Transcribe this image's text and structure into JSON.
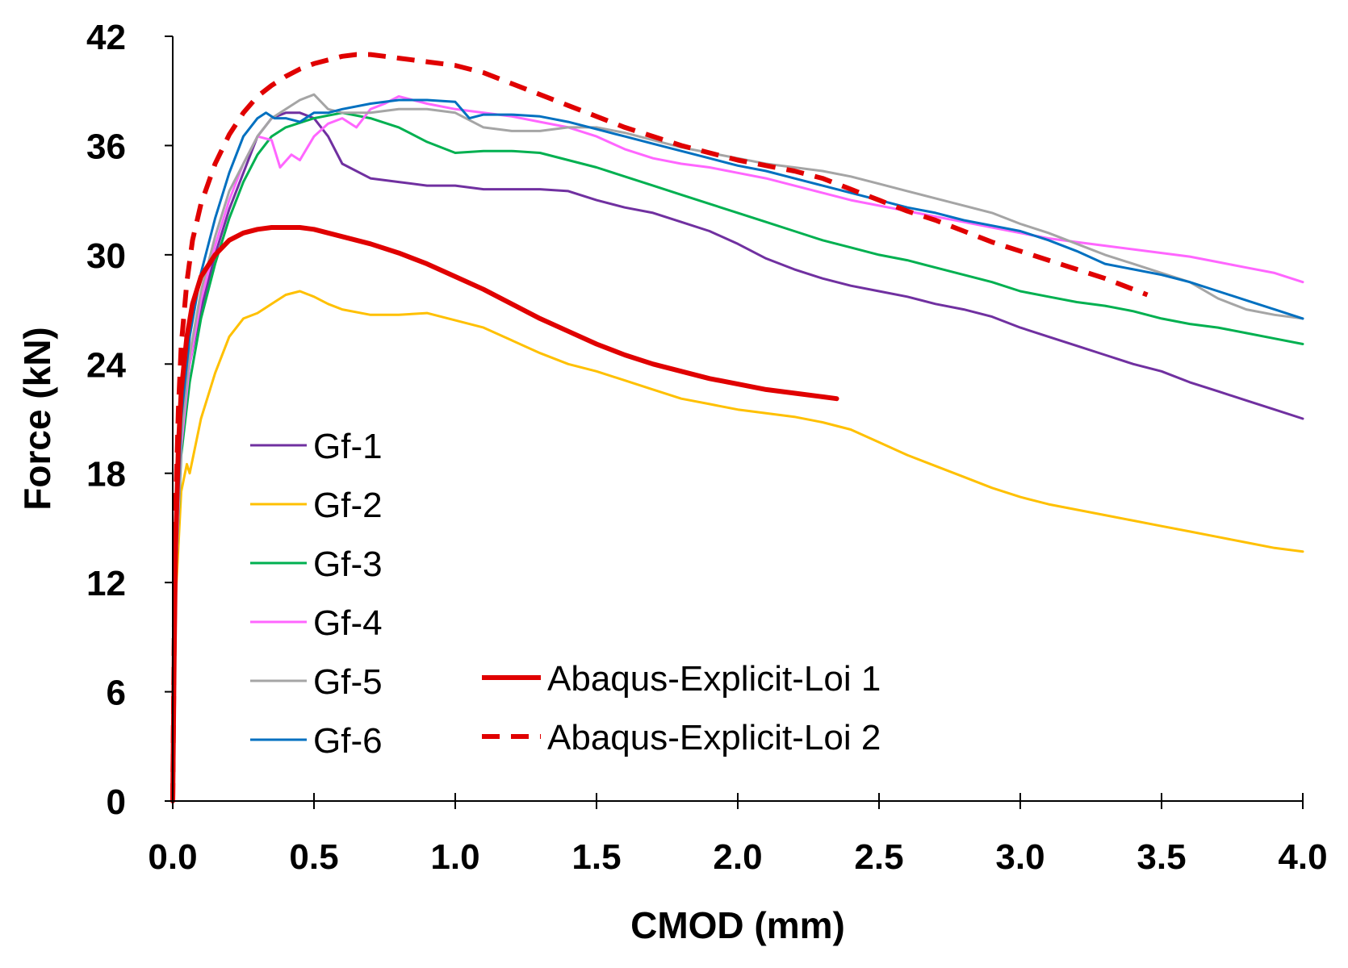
{
  "chart_data": {
    "type": "line",
    "title": "",
    "xlabel": "CMOD (mm)",
    "ylabel": "Force (kN)",
    "xlim": [
      0,
      4.0
    ],
    "ylim": [
      0,
      42
    ],
    "xticks": [
      0.0,
      0.5,
      1.0,
      1.5,
      2.0,
      2.5,
      3.0,
      3.5,
      4.0
    ],
    "xtick_labels": [
      "0.0",
      "0.5",
      "1.0",
      "1.5",
      "2.0",
      "2.5",
      "3.0",
      "3.5",
      "4.0"
    ],
    "yticks": [
      0,
      6,
      12,
      18,
      24,
      30,
      36,
      42
    ],
    "ytick_labels": [
      "0",
      "6",
      "12",
      "18",
      "24",
      "30",
      "36",
      "42"
    ],
    "grid": false,
    "legend_position": "lower-left",
    "series": [
      {
        "name": "Gf-1",
        "color": "#7030A0",
        "style": "solid",
        "weight": "thin",
        "x": [
          0,
          0.01,
          0.03,
          0.06,
          0.1,
          0.15,
          0.2,
          0.25,
          0.3,
          0.35,
          0.4,
          0.45,
          0.5,
          0.55,
          0.6,
          0.7,
          0.8,
          0.9,
          1.0,
          1.1,
          1.2,
          1.3,
          1.4,
          1.5,
          1.6,
          1.7,
          1.8,
          1.9,
          2.0,
          2.1,
          2.2,
          2.3,
          2.4,
          2.5,
          2.6,
          2.7,
          2.8,
          2.9,
          3.0,
          3.1,
          3.2,
          3.3,
          3.4,
          3.5,
          3.6,
          3.7,
          3.8,
          3.9,
          4.0
        ],
        "values": [
          0,
          12,
          20,
          24,
          27,
          30,
          32.5,
          34.5,
          36.5,
          37.5,
          37.8,
          37.8,
          37.5,
          36.5,
          35,
          34.2,
          34,
          33.8,
          33.8,
          33.6,
          33.6,
          33.6,
          33.5,
          33,
          32.6,
          32.3,
          31.8,
          31.3,
          30.6,
          29.8,
          29.2,
          28.7,
          28.3,
          28,
          27.7,
          27.3,
          27,
          26.6,
          26,
          25.5,
          25,
          24.5,
          24,
          23.6,
          23,
          22.5,
          22,
          21.5,
          21
        ]
      },
      {
        "name": "Gf-2",
        "color": "#FFC000",
        "style": "solid",
        "weight": "thin",
        "x": [
          0,
          0.01,
          0.03,
          0.05,
          0.06,
          0.08,
          0.1,
          0.15,
          0.2,
          0.25,
          0.3,
          0.35,
          0.4,
          0.45,
          0.5,
          0.55,
          0.6,
          0.7,
          0.8,
          0.9,
          1.0,
          1.1,
          1.2,
          1.3,
          1.4,
          1.5,
          1.6,
          1.7,
          1.8,
          1.9,
          2.0,
          2.1,
          2.2,
          2.3,
          2.4,
          2.5,
          2.6,
          2.7,
          2.8,
          2.9,
          3.0,
          3.1,
          3.2,
          3.3,
          3.4,
          3.5,
          3.6,
          3.7,
          3.8,
          3.9,
          4.0
        ],
        "values": [
          0,
          11,
          17,
          18.5,
          18,
          19.5,
          21,
          23.5,
          25.5,
          26.5,
          26.8,
          27.3,
          27.8,
          28,
          27.7,
          27.3,
          27,
          26.7,
          26.7,
          26.8,
          26.4,
          26,
          25.3,
          24.6,
          24,
          23.6,
          23.1,
          22.6,
          22.1,
          21.8,
          21.5,
          21.3,
          21.1,
          20.8,
          20.4,
          19.7,
          19,
          18.4,
          17.8,
          17.2,
          16.7,
          16.3,
          16,
          15.7,
          15.4,
          15.1,
          14.8,
          14.5,
          14.2,
          13.9,
          13.7
        ]
      },
      {
        "name": "Gf-3",
        "color": "#00B050",
        "style": "solid",
        "weight": "thin",
        "x": [
          0,
          0.01,
          0.03,
          0.06,
          0.1,
          0.15,
          0.2,
          0.25,
          0.3,
          0.35,
          0.4,
          0.5,
          0.6,
          0.7,
          0.8,
          0.9,
          1.0,
          1.1,
          1.2,
          1.3,
          1.4,
          1.5,
          1.6,
          1.7,
          1.8,
          1.9,
          2.0,
          2.1,
          2.2,
          2.3,
          2.4,
          2.5,
          2.6,
          2.7,
          2.8,
          2.9,
          3.0,
          3.1,
          3.2,
          3.3,
          3.4,
          3.5,
          3.6,
          3.7,
          3.8,
          3.9,
          4.0
        ],
        "values": [
          0,
          12,
          19,
          23,
          26.5,
          29.5,
          32,
          34,
          35.5,
          36.5,
          37,
          37.5,
          37.8,
          37.5,
          37,
          36.2,
          35.6,
          35.7,
          35.7,
          35.6,
          35.2,
          34.8,
          34.3,
          33.8,
          33.3,
          32.8,
          32.3,
          31.8,
          31.3,
          30.8,
          30.4,
          30,
          29.7,
          29.3,
          28.9,
          28.5,
          28,
          27.7,
          27.4,
          27.2,
          26.9,
          26.5,
          26.2,
          26,
          25.7,
          25.4,
          25.1
        ]
      },
      {
        "name": "Gf-4",
        "color": "#FF66FF",
        "style": "solid",
        "weight": "thin",
        "x": [
          0,
          0.01,
          0.03,
          0.06,
          0.1,
          0.15,
          0.2,
          0.25,
          0.3,
          0.35,
          0.38,
          0.42,
          0.45,
          0.5,
          0.55,
          0.6,
          0.65,
          0.7,
          0.75,
          0.8,
          0.85,
          0.9,
          1.0,
          1.1,
          1.2,
          1.3,
          1.4,
          1.5,
          1.6,
          1.7,
          1.8,
          1.9,
          2.0,
          2.1,
          2.2,
          2.3,
          2.4,
          2.5,
          2.6,
          2.7,
          2.8,
          2.9,
          3.0,
          3.1,
          3.2,
          3.3,
          3.4,
          3.5,
          3.6,
          3.7,
          3.8,
          3.9,
          4.0
        ],
        "values": [
          0,
          12,
          19.5,
          24,
          27.5,
          30.5,
          33,
          35,
          36.5,
          36.3,
          34.8,
          35.5,
          35.2,
          36.5,
          37.2,
          37.5,
          37,
          38,
          38.3,
          38.7,
          38.5,
          38.3,
          38,
          37.8,
          37.6,
          37.3,
          37,
          36.5,
          35.8,
          35.3,
          35,
          34.8,
          34.5,
          34.2,
          33.8,
          33.4,
          33,
          32.7,
          32.4,
          32.1,
          31.8,
          31.5,
          31.2,
          30.9,
          30.7,
          30.5,
          30.3,
          30.1,
          29.9,
          29.6,
          29.3,
          29,
          28.5
        ]
      },
      {
        "name": "Gf-5",
        "color": "#A5A5A5",
        "style": "solid",
        "weight": "thin",
        "x": [
          0,
          0.01,
          0.03,
          0.06,
          0.1,
          0.15,
          0.2,
          0.25,
          0.3,
          0.35,
          0.4,
          0.45,
          0.5,
          0.55,
          0.6,
          0.7,
          0.8,
          0.9,
          1.0,
          1.1,
          1.2,
          1.3,
          1.4,
          1.5,
          1.6,
          1.7,
          1.8,
          1.9,
          2.0,
          2.1,
          2.2,
          2.3,
          2.4,
          2.5,
          2.6,
          2.7,
          2.8,
          2.9,
          3.0,
          3.1,
          3.2,
          3.3,
          3.4,
          3.5,
          3.6,
          3.7,
          3.8,
          3.9,
          4.0
        ],
        "values": [
          0,
          12,
          20,
          24.5,
          28,
          31,
          33.5,
          35,
          36.5,
          37.5,
          38,
          38.5,
          38.8,
          38,
          37.8,
          37.8,
          38,
          38,
          37.8,
          37,
          36.8,
          36.8,
          37,
          37,
          36.7,
          36.3,
          35.9,
          35.6,
          35.3,
          35,
          34.8,
          34.6,
          34.3,
          33.9,
          33.5,
          33.1,
          32.7,
          32.3,
          31.7,
          31.2,
          30.6,
          30,
          29.5,
          29,
          28.5,
          27.6,
          27,
          26.7,
          26.5
        ]
      },
      {
        "name": "Gf-6",
        "color": "#0070C0",
        "style": "solid",
        "weight": "thin",
        "x": [
          0,
          0.01,
          0.03,
          0.06,
          0.1,
          0.15,
          0.2,
          0.25,
          0.3,
          0.33,
          0.36,
          0.4,
          0.45,
          0.5,
          0.55,
          0.6,
          0.7,
          0.8,
          0.9,
          1.0,
          1.05,
          1.1,
          1.2,
          1.3,
          1.4,
          1.5,
          1.6,
          1.7,
          1.8,
          1.9,
          2.0,
          2.1,
          2.2,
          2.3,
          2.4,
          2.5,
          2.6,
          2.7,
          2.8,
          2.9,
          3.0,
          3.1,
          3.2,
          3.3,
          3.4,
          3.5,
          3.6,
          3.7,
          3.8,
          3.9,
          4.0
        ],
        "values": [
          0,
          13,
          21,
          25.5,
          29,
          32,
          34.5,
          36.5,
          37.5,
          37.8,
          37.5,
          37.5,
          37.3,
          37.8,
          37.8,
          38,
          38.3,
          38.5,
          38.5,
          38.4,
          37.5,
          37.7,
          37.7,
          37.6,
          37.3,
          36.9,
          36.5,
          36.1,
          35.7,
          35.3,
          34.9,
          34.6,
          34.2,
          33.8,
          33.4,
          33,
          32.6,
          32.3,
          31.9,
          31.6,
          31.3,
          30.8,
          30.2,
          29.5,
          29.2,
          28.9,
          28.5,
          28,
          27.5,
          27,
          26.5
        ]
      },
      {
        "name": "Abaqus-Explicit-Loi 1",
        "color": "#E00000",
        "style": "solid",
        "weight": "thick",
        "x": [
          0,
          0.005,
          0.01,
          0.02,
          0.03,
          0.05,
          0.07,
          0.1,
          0.15,
          0.2,
          0.25,
          0.3,
          0.35,
          0.4,
          0.45,
          0.5,
          0.55,
          0.6,
          0.7,
          0.8,
          0.9,
          1.0,
          1.1,
          1.2,
          1.3,
          1.4,
          1.5,
          1.6,
          1.7,
          1.8,
          1.9,
          2.0,
          2.1,
          2.2,
          2.3,
          2.35
        ],
        "values": [
          0,
          8,
          14,
          19.5,
          22.5,
          25.5,
          27.3,
          28.8,
          30,
          30.8,
          31.2,
          31.4,
          31.5,
          31.5,
          31.5,
          31.4,
          31.2,
          31,
          30.6,
          30.1,
          29.5,
          28.8,
          28.1,
          27.3,
          26.5,
          25.8,
          25.1,
          24.5,
          24,
          23.6,
          23.2,
          22.9,
          22.6,
          22.4,
          22.2,
          22.1
        ]
      },
      {
        "name": "Abaqus-Explicit-Loi 2",
        "color": "#E00000",
        "style": "dashed",
        "weight": "thick",
        "x": [
          0,
          0.005,
          0.01,
          0.02,
          0.03,
          0.05,
          0.07,
          0.1,
          0.15,
          0.2,
          0.25,
          0.3,
          0.35,
          0.4,
          0.45,
          0.5,
          0.55,
          0.6,
          0.65,
          0.7,
          0.75,
          0.8,
          0.9,
          1.0,
          1.1,
          1.2,
          1.3,
          1.4,
          1.5,
          1.6,
          1.7,
          1.8,
          1.9,
          2.0,
          2.1,
          2.2,
          2.3,
          2.4,
          2.5,
          2.6,
          2.7,
          2.8,
          2.9,
          3.0,
          3.1,
          3.2,
          3.3,
          3.4,
          3.45
        ],
        "values": [
          0,
          9,
          16,
          21.5,
          25,
          28.5,
          30.8,
          32.8,
          35,
          36.6,
          37.8,
          38.7,
          39.3,
          39.8,
          40.2,
          40.5,
          40.7,
          40.9,
          41,
          41,
          40.9,
          40.8,
          40.6,
          40.4,
          40,
          39.4,
          38.8,
          38.2,
          37.6,
          37,
          36.5,
          36,
          35.6,
          35.2,
          34.9,
          34.6,
          34.2,
          33.6,
          33,
          32.4,
          31.9,
          31.3,
          30.7,
          30.2,
          29.7,
          29.2,
          28.7,
          28.1,
          27.8
        ]
      }
    ]
  }
}
